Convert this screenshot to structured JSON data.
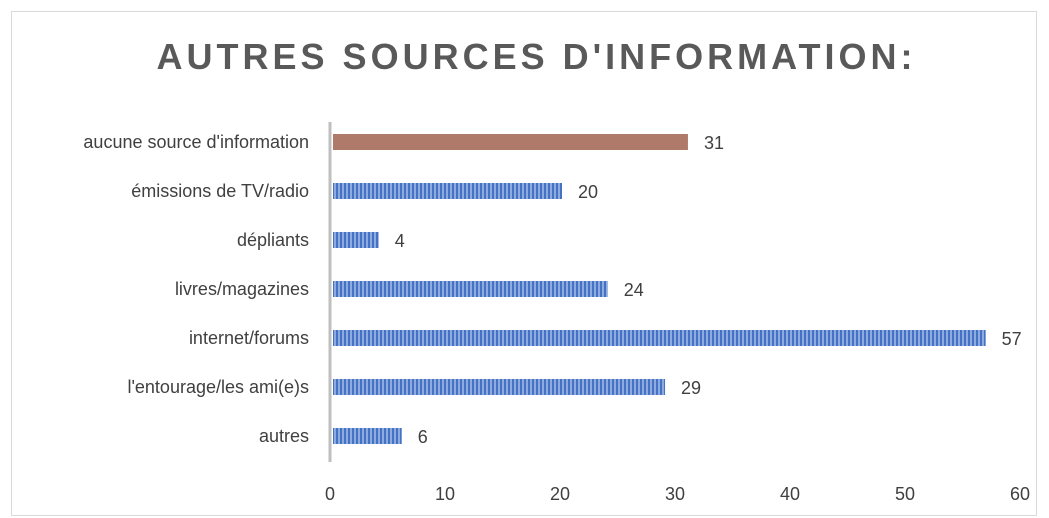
{
  "chart_data": {
    "type": "bar",
    "orientation": "horizontal",
    "title": "AUTRES SOURCES D'INFORMATION:",
    "categories": [
      "aucune source d'information",
      "émissions de TV/radio",
      "dépliants",
      "livres/magazines",
      "internet/forums",
      "l'entourage/les ami(e)s",
      "autres"
    ],
    "values": [
      31,
      20,
      4,
      24,
      57,
      29,
      6
    ],
    "highlight_index": 0,
    "xlim": [
      0,
      60
    ],
    "xticks": [
      "0",
      "10",
      "20",
      "30",
      "40",
      "50",
      "60"
    ],
    "grid": false,
    "legend": "none",
    "colors": {
      "bar": "#4472c4",
      "bar_stripe": "#8faadc",
      "highlight": "#b07a6a",
      "text": "#404040",
      "title": "#595959",
      "axis": "#bfbfbf"
    }
  }
}
